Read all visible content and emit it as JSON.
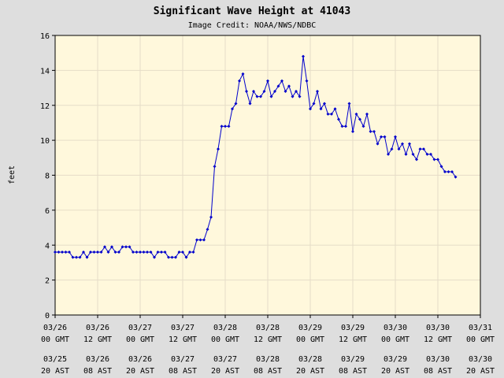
{
  "chart_data": {
    "type": "line",
    "title": "Significant Wave Height at 41043",
    "subtitle": "Image Credit: NOAA/NWS/NDBC",
    "y_label": "feet",
    "x": [
      0,
      1,
      2,
      3,
      4,
      5,
      6,
      7,
      8,
      9,
      10,
      11,
      12,
      13,
      14,
      15,
      16,
      17,
      18,
      19,
      20,
      21,
      22,
      23,
      24,
      25,
      26,
      27,
      28,
      29,
      30,
      31,
      32,
      33,
      34,
      35,
      36,
      37,
      38,
      39,
      40,
      41,
      42,
      43,
      44,
      45,
      46,
      47,
      48,
      49,
      50,
      51,
      52,
      53,
      54,
      55,
      56,
      57,
      58,
      59,
      60,
      61,
      62,
      63,
      64,
      65,
      66,
      67,
      68,
      69,
      70,
      71,
      72,
      73,
      74,
      75,
      76,
      77,
      78,
      79,
      80,
      81,
      82,
      83,
      84,
      85,
      86,
      87,
      88,
      89,
      90,
      91,
      92,
      93,
      94,
      95,
      96,
      97,
      98,
      99,
      100,
      101,
      102,
      103,
      104,
      105,
      106,
      107,
      108,
      109,
      110,
      111,
      112,
      113
    ],
    "series": [
      {
        "name": "Significant Wave Height",
        "color": "#0000cc",
        "values": [
          3.6,
          3.6,
          3.6,
          3.6,
          3.6,
          3.3,
          3.3,
          3.3,
          3.6,
          3.3,
          3.6,
          3.6,
          3.6,
          3.6,
          3.9,
          3.6,
          3.9,
          3.6,
          3.6,
          3.9,
          3.9,
          3.9,
          3.6,
          3.6,
          3.6,
          3.6,
          3.6,
          3.6,
          3.3,
          3.6,
          3.6,
          3.6,
          3.3,
          3.3,
          3.3,
          3.6,
          3.6,
          3.3,
          3.6,
          3.6,
          4.3,
          4.3,
          4.3,
          4.9,
          5.6,
          8.5,
          9.5,
          10.8,
          10.8,
          10.8,
          11.8,
          12.1,
          13.4,
          13.8,
          12.8,
          12.1,
          12.8,
          12.5,
          12.5,
          12.8,
          13.4,
          12.5,
          12.8,
          13.1,
          13.4,
          12.8,
          13.1,
          12.5,
          12.8,
          12.5,
          14.8,
          13.4,
          11.8,
          12.1,
          12.8,
          11.8,
          12.1,
          11.5,
          11.5,
          11.8,
          11.2,
          10.8,
          10.8,
          12.1,
          10.5,
          11.5,
          11.2,
          10.8,
          11.5,
          10.5,
          10.5,
          9.8,
          10.2,
          10.2,
          9.2,
          9.5,
          10.2,
          9.5,
          9.8,
          9.2,
          9.8,
          9.2,
          8.9,
          9.5,
          9.5,
          9.2,
          9.2,
          8.9,
          8.9,
          8.5,
          8.2,
          8.2,
          8.2,
          7.9
        ]
      }
    ],
    "xlim": [
      0,
      120
    ],
    "xticks": [
      {
        "value": 0,
        "label": "03/26"
      },
      {
        "value": 12,
        "label": "03/26"
      },
      {
        "value": 24,
        "label": "03/27"
      },
      {
        "value": 36,
        "label": "03/27"
      },
      {
        "value": 48,
        "label": "03/28"
      },
      {
        "value": 60,
        "label": "03/28"
      },
      {
        "value": 72,
        "label": "03/29"
      },
      {
        "value": 84,
        "label": "03/29"
      },
      {
        "value": 96,
        "label": "03/30"
      },
      {
        "value": 108,
        "label": "03/30"
      },
      {
        "value": 120,
        "label": "03/31"
      }
    ],
    "xtick_hours": [
      "00 GMT",
      "12 GMT",
      "00 GMT",
      "12 GMT",
      "00 GMT",
      "12 GMT",
      "00 GMT",
      "12 GMT",
      "00 GMT",
      "12 GMT",
      "00 GMT"
    ],
    "xtick_local_dates": [
      "03/25",
      "03/26",
      "03/26",
      "03/27",
      "03/27",
      "03/28",
      "03/28",
      "03/29",
      "03/29",
      "03/30",
      "03/30"
    ],
    "xtick_local_hours": [
      "20 AST",
      "08 AST",
      "20 AST",
      "08 AST",
      "20 AST",
      "08 AST",
      "20 AST",
      "08 AST",
      "20 AST",
      "08 AST",
      "20 AST"
    ],
    "ylim": [
      0,
      16
    ],
    "yticks": [
      0,
      2,
      4,
      6,
      8,
      10,
      12,
      14,
      16
    ],
    "grid": true
  }
}
